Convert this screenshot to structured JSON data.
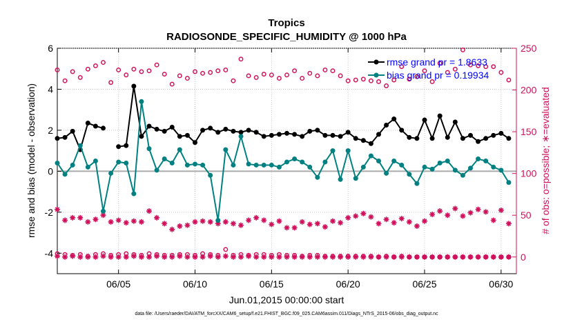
{
  "chart_data": {
    "type": "line",
    "title": "Tropics",
    "subtitle": "RADIOSONDE_SPECIFIC_HUMIDITY @ 1000 hPa",
    "xlabel": "Jun.01,2015 00:00:00 start",
    "ylabel_left": "rmse and bias (model - observation)",
    "ylabel_right": "# of obs: o=possible; ∗=evaluated",
    "footer": "data file: /Users/raeder/DAI/ATM_forcXX/CAM6_setup/f.e21.FHIST_BGC.f09_025.CAM6assim.011/Diags_NTrS_2015-06/obs_diag_output.nc",
    "x_tick_values": [
      5,
      10,
      15,
      20,
      25,
      30
    ],
    "x_tick_labels": [
      "06/05",
      "06/10",
      "06/15",
      "06/20",
      "06/25",
      "06/30"
    ],
    "xlim": [
      1,
      31
    ],
    "ylim_left": [
      -5,
      6
    ],
    "y_left_ticks": [
      -4,
      -2,
      0,
      2,
      4,
      6
    ],
    "ylim_right": [
      -20,
      250
    ],
    "y_right_ticks": [
      0,
      50,
      100,
      150,
      200,
      250
    ],
    "colors": {
      "rmse": "#000000",
      "bias": "#008080",
      "obs": "#d0105a",
      "zero_line": "#aaaaaa",
      "legend_text": "#0000ff"
    },
    "legend": [
      {
        "series": "rmse",
        "label": "rmse grand pr = 1.8633"
      },
      {
        "series": "bias",
        "label": "bias grand pr = 0.19934"
      }
    ],
    "series": [
      {
        "name": "rmse",
        "axis": "left",
        "style": "line-markers",
        "x": [
          1,
          1.5,
          2,
          2.5,
          3,
          3.5,
          4,
          4.5,
          5,
          5.5,
          6,
          6.5,
          7,
          7.5,
          8,
          8.5,
          9,
          9.5,
          10,
          10.5,
          11,
          11.5,
          12,
          12.5,
          13,
          13.5,
          14,
          14.5,
          15,
          15.5,
          16,
          16.5,
          17,
          17.5,
          18,
          18.5,
          19,
          19.5,
          20,
          20.5,
          21,
          21.5,
          22,
          22.5,
          23,
          23.5,
          24,
          24.5,
          25,
          25.5,
          26,
          26.5,
          27,
          27.5,
          28,
          28.5,
          29,
          29.5,
          30,
          30.5
        ],
        "values": [
          1.6,
          1.65,
          1.95,
          1.05,
          2.35,
          2.2,
          2.1,
          null,
          1.2,
          1.25,
          4.15,
          1.7,
          2.2,
          2.05,
          1.95,
          2.15,
          1.7,
          1.75,
          1.4,
          2.0,
          2.1,
          1.9,
          2.05,
          1.95,
          1.9,
          2.0,
          1.9,
          1.7,
          1.75,
          1.8,
          1.85,
          1.8,
          1.7,
          1.95,
          2.0,
          1.75,
          1.75,
          1.7,
          1.9,
          1.6,
          1.5,
          1.35,
          1.8,
          2.25,
          2.55,
          2.0,
          1.65,
          1.6,
          2.5,
          1.6,
          2.7,
          1.65,
          2.4,
          1.6,
          1.75,
          1.45,
          1.6,
          1.75,
          1.85,
          1.6
        ]
      },
      {
        "name": "bias",
        "axis": "left",
        "style": "line-markers",
        "x": [
          1,
          1.5,
          2,
          2.5,
          3,
          3.5,
          4,
          4.5,
          5,
          5.5,
          6,
          6.5,
          7,
          7.5,
          8,
          8.5,
          9,
          9.5,
          10,
          10.5,
          11,
          11.5,
          12,
          12.5,
          13,
          13.5,
          14,
          14.5,
          15,
          15.5,
          16,
          16.5,
          17,
          17.5,
          18,
          18.5,
          19,
          19.5,
          20,
          20.5,
          21,
          21.5,
          22,
          22.5,
          23,
          23.5,
          24,
          24.5,
          25,
          25.5,
          26,
          26.5,
          27,
          27.5,
          28,
          28.5,
          29,
          29.5,
          30,
          30.5
        ],
        "values": [
          0.4,
          -0.15,
          0.3,
          1.25,
          0.2,
          0.5,
          -1.95,
          -0.1,
          0.45,
          0.4,
          -1.1,
          3.4,
          1.1,
          0.05,
          0.6,
          0.4,
          1.05,
          0.3,
          0.35,
          0.3,
          -0.2,
          -2.4,
          1.05,
          0.3,
          1.7,
          0.35,
          0.3,
          0.3,
          0.3,
          0.2,
          0.45,
          0.6,
          0.45,
          0.2,
          -0.3,
          0.45,
          1.0,
          -0.4,
          1.0,
          -0.35,
          0.2,
          0.75,
          0.5,
          -0.1,
          0.5,
          0.3,
          -0.15,
          -0.6,
          0.2,
          0.1,
          0.4,
          0.5,
          0.05,
          -0.2,
          0.15,
          0.6,
          0.5,
          0.2,
          0.05,
          -0.55
        ]
      },
      {
        "name": "obs_possible",
        "axis": "right",
        "style": "open-circle",
        "x": [
          1,
          1.5,
          2,
          2.5,
          3,
          3.5,
          4,
          4.5,
          5,
          5.5,
          6,
          6.5,
          7,
          7.5,
          8,
          8.5,
          9,
          9.5,
          10,
          10.5,
          11,
          11.5,
          12,
          12.5,
          13,
          13.5,
          14,
          14.5,
          15,
          15.5,
          16,
          16.5,
          17,
          17.5,
          18,
          18.5,
          19,
          19.5,
          20,
          20.5,
          21,
          21.5,
          22,
          22.5,
          23,
          23.5,
          24,
          24.5,
          25,
          25.5,
          26,
          26.5,
          27,
          27.5,
          28,
          28.5,
          29,
          29.5,
          30,
          30.5
        ],
        "values": [
          224,
          211,
          222,
          215,
          225,
          229,
          233,
          209,
          224,
          218,
          225,
          222,
          223,
          230,
          219,
          207,
          217,
          214,
          222,
          220,
          221,
          223,
          224,
          211,
          237,
          217,
          215,
          219,
          218,
          214,
          218,
          223,
          214,
          220,
          217,
          224,
          223,
          217,
          211,
          212,
          213,
          211,
          210,
          205,
          212,
          228,
          213,
          216,
          223,
          210,
          232,
          221,
          225,
          248,
          230,
          229,
          228,
          228,
          221,
          212
        ]
      },
      {
        "name": "obs_possible_base",
        "axis": "right",
        "style": "open-circle",
        "x": [
          1,
          1.5,
          2,
          2.5,
          3,
          3.5,
          4,
          4.5,
          5,
          5.5,
          6,
          6.5,
          7,
          7.5,
          8,
          8.5,
          9,
          9.5,
          10,
          10.5,
          11,
          11.5,
          12,
          12.5,
          13,
          13.5,
          14,
          14.5,
          15,
          15.5,
          16,
          16.5,
          17,
          17.5,
          18,
          18.5,
          19,
          19.5,
          20,
          20.5,
          21,
          21.5,
          22,
          22.5,
          23,
          23.5,
          24,
          24.5,
          25,
          25.5,
          26,
          26.5,
          27,
          27.5,
          28,
          28.5,
          29,
          29.5,
          30,
          30.5
        ],
        "values": [
          4,
          3,
          2,
          3,
          1,
          3,
          4,
          2,
          3,
          4,
          3,
          2,
          4,
          3,
          2,
          2,
          3,
          3,
          2,
          4,
          3,
          2,
          9,
          2,
          3,
          2,
          3,
          3,
          2,
          3,
          2,
          2,
          1,
          2,
          2,
          1,
          1,
          1,
          1,
          1,
          1,
          1,
          0,
          1,
          0,
          1,
          0,
          0,
          0,
          0,
          0,
          0,
          0,
          0,
          0,
          0,
          0,
          0,
          0,
          0
        ]
      },
      {
        "name": "obs_evaluated",
        "axis": "right",
        "style": "asterisk",
        "x": [
          1,
          1.5,
          2,
          2.5,
          3,
          3.5,
          4,
          4.5,
          5,
          5.5,
          6,
          6.5,
          7,
          7.5,
          8,
          8.5,
          9,
          9.5,
          10,
          10.5,
          11,
          11.5,
          12,
          12.5,
          13,
          13.5,
          14,
          14.5,
          15,
          15.5,
          16,
          16.5,
          17,
          17.5,
          18,
          18.5,
          19,
          19.5,
          20,
          20.5,
          21,
          21.5,
          22,
          22.5,
          23,
          23.5,
          24,
          24.5,
          25,
          25.5,
          26,
          26.5,
          27,
          27.5,
          28,
          28.5,
          29,
          29.5,
          30,
          30.5
        ],
        "values": [
          57,
          44,
          47,
          47,
          42,
          45,
          50,
          42,
          44,
          41,
          43,
          42,
          55,
          47,
          40,
          33,
          37,
          38,
          42,
          43,
          42,
          40,
          42,
          40,
          38,
          44,
          47,
          44,
          39,
          43,
          35,
          35,
          42,
          39,
          40,
          36,
          43,
          41,
          47,
          49,
          52,
          48,
          40,
          45,
          41,
          46,
          42,
          37,
          43,
          51,
          55,
          50,
          58,
          49,
          53,
          57,
          54,
          44,
          56,
          40
        ]
      },
      {
        "name": "obs_evaluated_base",
        "axis": "right",
        "style": "asterisk",
        "x": [
          1,
          1.5,
          2,
          2.5,
          3,
          3.5,
          4,
          4.5,
          5,
          5.5,
          6,
          6.5,
          7,
          7.5,
          8,
          8.5,
          9,
          9.5,
          10,
          10.5,
          11,
          11.5,
          12,
          12.5,
          13,
          13.5,
          14,
          14.5,
          15,
          15.5,
          16,
          16.5,
          17,
          17.5,
          18,
          18.5,
          19,
          19.5,
          20,
          20.5,
          21,
          21.5,
          22,
          22.5,
          23,
          23.5,
          24,
          24.5,
          25,
          25.5,
          26,
          26.5,
          27,
          27.5,
          28,
          28.5,
          29,
          29.5,
          30,
          30.5
        ],
        "values": [
          1,
          0,
          1,
          0,
          0,
          0,
          1,
          0,
          0,
          0,
          1,
          0,
          0,
          1,
          0,
          0,
          1,
          0,
          0,
          0,
          1,
          0,
          1,
          0,
          0,
          1,
          0,
          0,
          0,
          0,
          0,
          0,
          0,
          0,
          0,
          0,
          0,
          0,
          0,
          0,
          0,
          0,
          0,
          0,
          0,
          0,
          0,
          0,
          0,
          0,
          0,
          0,
          0,
          0,
          0,
          0,
          0,
          0,
          0,
          0
        ]
      }
    ]
  }
}
